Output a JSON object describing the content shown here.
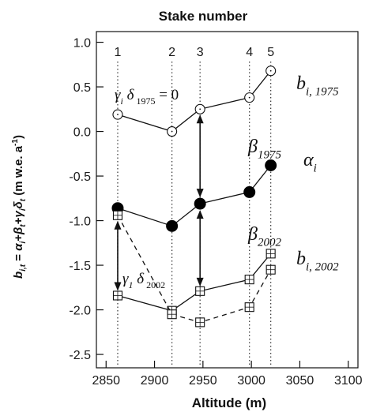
{
  "chart_data": {
    "type": "line",
    "top_axis_title": "Stake number",
    "xlabel": "Altitude (m)",
    "ylabel": "b_i,t = α_i + β_t + γ_i δ_t (m w.e. a⁻¹)",
    "xlim": [
      2840,
      3110
    ],
    "ylim": [
      -2.65,
      1.12
    ],
    "x_ticks": [
      2850,
      2900,
      2950,
      3000,
      3050,
      3100
    ],
    "y_ticks": [
      1.0,
      0.5,
      0.0,
      -0.5,
      -1.0,
      -1.5,
      -2.0,
      -2.5
    ],
    "y_tick_labels": [
      "1.0",
      "0.5",
      "0.0",
      "-0.5",
      "-1.0",
      "-1.5",
      "-2.0",
      "-2.5"
    ],
    "grid": false,
    "stakes": [
      {
        "label": "1",
        "altitude": 2862
      },
      {
        "label": "2",
        "altitude": 2918
      },
      {
        "label": "3",
        "altitude": 2947
      },
      {
        "label": "4",
        "altitude": 2998
      },
      {
        "label": "5",
        "altitude": 3020
      }
    ],
    "series": [
      {
        "name": "b_i,1975",
        "style": "solid",
        "marker": "open-circle",
        "x": [
          2862,
          2918,
          2947,
          2998,
          3020
        ],
        "y": [
          0.19,
          0.0,
          0.25,
          0.38,
          0.68
        ]
      },
      {
        "name": "α_i",
        "style": "solid",
        "marker": "filled-circle",
        "x": [
          2862,
          2918,
          2947,
          2998,
          3020
        ],
        "y": [
          -0.86,
          -1.06,
          -0.81,
          -0.68,
          -0.38
        ]
      },
      {
        "name": "b_i,2002",
        "style": "solid",
        "marker": "open-square",
        "x": [
          2862,
          2918,
          2947,
          2998,
          3020
        ],
        "y": [
          -1.84,
          -2.01,
          -1.79,
          -1.66,
          -1.37
        ]
      },
      {
        "style": "dashed",
        "marker": "open-square",
        "x": [
          2862,
          2918,
          2947,
          2998,
          3020
        ],
        "y": [
          -0.94,
          -2.05,
          -2.14,
          -1.97,
          -1.55
        ]
      }
    ],
    "annotations": {
      "gamma_1975": {
        "text": "γ",
        "sub": "i",
        "text2": "δ",
        "sub2": "1975",
        "tail": "= 0"
      },
      "beta_1975": {
        "text": "β",
        "sub": "1975"
      },
      "alpha": {
        "text": "α",
        "sub": "i"
      },
      "beta_2002": {
        "text": "β",
        "sub": "2002"
      },
      "gamma_2002": {
        "text": "γ",
        "sub": "1",
        "text2": "δ",
        "sub2": "2002"
      },
      "b_1975": {
        "text": "b",
        "sub": "i, 1975"
      },
      "b_2002": {
        "text": "b",
        "sub": "i, 2002"
      }
    }
  }
}
